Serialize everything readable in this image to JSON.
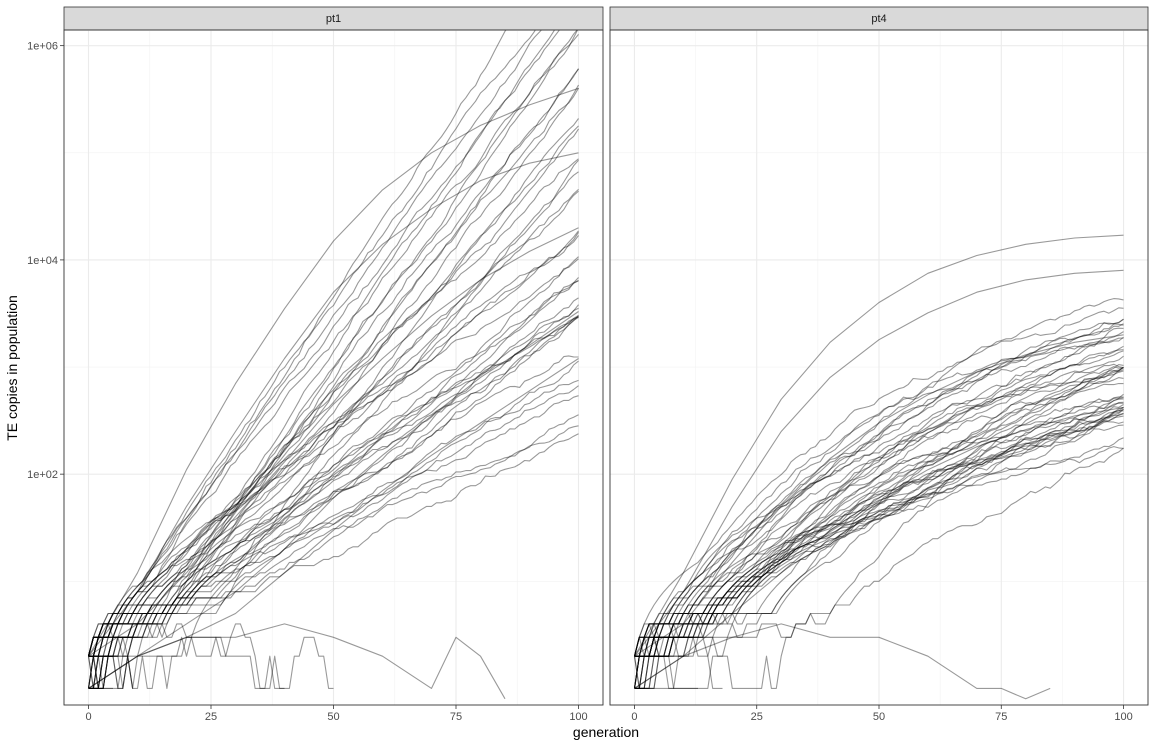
{
  "chart_data": {
    "type": "line",
    "xlabel": "generation",
    "ylabel": "TE copies in population",
    "x_scale": "linear",
    "y_scale": "log10",
    "xlim": [
      -5,
      105
    ],
    "ylim": [
      0.7,
      1400000
    ],
    "x_ticks": [
      0,
      25,
      50,
      75,
      100
    ],
    "x_tick_labels": [
      "0",
      "25",
      "50",
      "75",
      "100"
    ],
    "y_ticks": [
      100,
      10000,
      1000000
    ],
    "y_tick_labels": [
      "1e+02",
      "1e+04",
      "1e+06"
    ],
    "grid": true,
    "theme": "bw",
    "line_color": "#000000",
    "line_alpha": 0.4,
    "runs_per_panel": 50,
    "panels": [
      {
        "strip": "pt1",
        "representative_series": [
          {
            "x": [
              0,
              10,
              20,
              30,
              40,
              50,
              60,
              70,
              80,
              90,
              100
            ],
            "y": [
              2,
              12,
              110,
              700,
              3500,
              15000,
              45000,
              100000,
              180000,
              280000,
              400000
            ]
          },
          {
            "x": [
              0,
              10,
              20,
              30,
              40,
              50,
              60,
              70,
              80,
              90,
              100
            ],
            "y": [
              2,
              8,
              50,
              250,
              1200,
              5000,
              14000,
              30000,
              55000,
              80000,
              100000
            ]
          },
          {
            "x": [
              0,
              10,
              20,
              30,
              40,
              50,
              60,
              70,
              80,
              90,
              100
            ],
            "y": [
              2,
              4,
              12,
              40,
              130,
              450,
              1200,
              3000,
              6500,
              12000,
              20000
            ]
          },
          {
            "x": [
              0,
              10,
              20,
              30,
              40,
              50,
              60,
              70,
              80,
              90,
              100
            ],
            "y": [
              1,
              2,
              4,
              8,
              20,
              60,
              150,
              350,
              800,
              1600,
              3300
            ]
          },
          {
            "x": [
              0,
              10,
              20,
              30,
              40,
              50,
              60,
              70,
              80,
              90,
              100
            ],
            "y": [
              1,
              2,
              3,
              5,
              12,
              30,
              70,
              150,
              300,
              600,
              1200
            ]
          },
          {
            "x": [
              0,
              10,
              20,
              30,
              40,
              50,
              60,
              70,
              75,
              80,
              85
            ],
            "y": [
              1,
              2,
              3,
              3,
              4,
              3,
              2,
              1,
              3,
              2,
              0.8
            ]
          }
        ]
      },
      {
        "strip": "pt4",
        "representative_series": [
          {
            "x": [
              0,
              10,
              20,
              30,
              40,
              50,
              60,
              70,
              80,
              90,
              100
            ],
            "y": [
              2,
              12,
              90,
              500,
              1700,
              4000,
              7500,
              11000,
              14000,
              16000,
              17000
            ]
          },
          {
            "x": [
              0,
              10,
              20,
              30,
              40,
              50,
              60,
              70,
              80,
              90,
              100
            ],
            "y": [
              2,
              8,
              50,
              250,
              800,
              1800,
              3200,
              5000,
              6500,
              7500,
              8000
            ]
          },
          {
            "x": [
              0,
              10,
              20,
              30,
              40,
              50,
              60,
              70,
              80,
              90,
              100
            ],
            "y": [
              2,
              4,
              15,
              50,
              140,
              300,
              550,
              900,
              1300,
              1700,
              2000
            ]
          },
          {
            "x": [
              0,
              10,
              20,
              30,
              40,
              50,
              60,
              70,
              80,
              90,
              100
            ],
            "y": [
              1,
              2,
              5,
              12,
              30,
              60,
              110,
              180,
              260,
              350,
              420
            ]
          },
          {
            "x": [
              0,
              10,
              20,
              30,
              40,
              50,
              60,
              70,
              75,
              80,
              85
            ],
            "y": [
              1,
              2,
              3,
              4,
              3,
              3,
              2,
              1,
              1,
              0.8,
              1
            ]
          }
        ]
      }
    ]
  }
}
